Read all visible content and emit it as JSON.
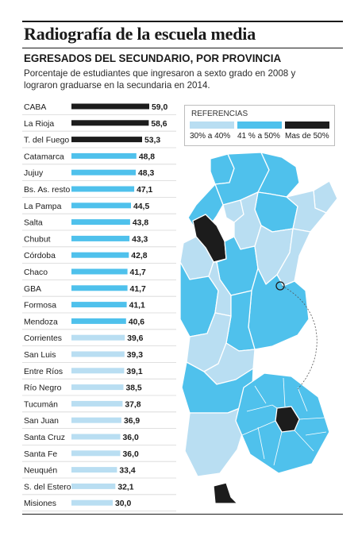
{
  "header": {
    "title": "Radiografía de la escuela media",
    "subtitle": "EGRESADOS DEL SECUNDARIO, POR PROVINCIA",
    "description": "Porcentaje de estudiantes que ingresaron a sexto grado en 2008 y lograron graduarse en la secundaria en 2014."
  },
  "legend": {
    "title": "REFERENCIAS",
    "items": [
      {
        "label": "30% a 40%",
        "color": "#b9def2"
      },
      {
        "label": "41 % a 50%",
        "color": "#4fc1ec"
      },
      {
        "label": "Mas de 50%",
        "color": "#1c1c1c"
      }
    ]
  },
  "colors": {
    "low": "#b9def2",
    "mid": "#4fc1ec",
    "high": "#1c1c1c",
    "map_border": "#ffffff"
  },
  "chart_data": {
    "type": "bar",
    "orientation": "horizontal",
    "title": "EGRESADOS DEL SECUNDARIO, POR PROVINCIA",
    "categories": [
      "CABA",
      "La Rioja",
      "T. del Fuego",
      "Catamarca",
      "Jujuy",
      "Bs. As. resto",
      "La Pampa",
      "Salta",
      "Chubut",
      "Córdoba",
      "Chaco",
      "GBA",
      "Formosa",
      "Mendoza",
      "Corrientes",
      "San Luis",
      "Entre Ríos",
      "Río Negro",
      "Tucumán",
      "San Juan",
      "Santa Cruz",
      "Santa Fe",
      "Neuquén",
      "S. del Estero",
      "Misiones"
    ],
    "values": [
      59.0,
      58.6,
      53.3,
      48.8,
      48.3,
      47.1,
      44.5,
      43.8,
      43.3,
      42.8,
      41.7,
      41.7,
      41.1,
      40.6,
      39.6,
      39.3,
      39.1,
      38.5,
      37.8,
      36.9,
      36.0,
      36.0,
      33.4,
      32.1,
      30.0
    ],
    "value_labels": [
      "59,0",
      "58,6",
      "53,3",
      "48,8",
      "48,3",
      "47,1",
      "44,5",
      "43,8",
      "43,3",
      "42,8",
      "41,7",
      "41,7",
      "41,1",
      "40,6",
      "39,6",
      "39,3",
      "39,1",
      "38,5",
      "37,8",
      "36,9",
      "36,0",
      "36,0",
      "33,4",
      "32,1",
      "30,0"
    ],
    "grid": false,
    "legend_position": "top-right"
  }
}
